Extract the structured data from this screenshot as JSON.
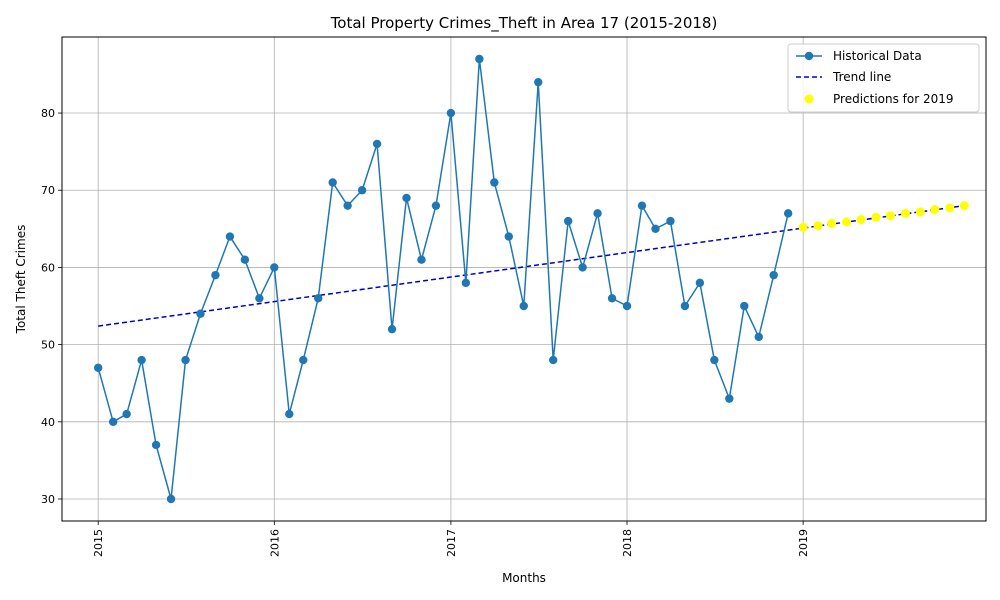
{
  "chart_data": {
    "type": "line",
    "title": "Total Property Crimes_Theft in Area 17 (2015-2018)",
    "xlabel": "Months",
    "ylabel": "Total Theft Crimes",
    "x_tick_labels": [
      "2015",
      "2016",
      "2017",
      "2018",
      "2019"
    ],
    "y_ticks": [
      30,
      40,
      50,
      60,
      70,
      80
    ],
    "xlim": [
      "2014-10-18",
      "2020-01-15"
    ],
    "ylim": [
      27.15,
      89.85
    ],
    "grid": true,
    "legend_position": "top-right",
    "series": [
      {
        "name": "Historical Data",
        "style": "line-marker",
        "color": "#1f77b4",
        "x": [
          "2015-01",
          "2015-02",
          "2015-03",
          "2015-04",
          "2015-05",
          "2015-06",
          "2015-07",
          "2015-08",
          "2015-09",
          "2015-10",
          "2015-11",
          "2015-12",
          "2016-01",
          "2016-02",
          "2016-03",
          "2016-04",
          "2016-05",
          "2016-06",
          "2016-07",
          "2016-08",
          "2016-09",
          "2016-10",
          "2016-11",
          "2016-12",
          "2017-01",
          "2017-02",
          "2017-03",
          "2017-04",
          "2017-05",
          "2017-06",
          "2017-07",
          "2017-08",
          "2017-09",
          "2017-10",
          "2017-11",
          "2017-12",
          "2018-01",
          "2018-02",
          "2018-03",
          "2018-04",
          "2018-05",
          "2018-06",
          "2018-07",
          "2018-08",
          "2018-09",
          "2018-10",
          "2018-11",
          "2018-12"
        ],
        "values": [
          47,
          40,
          41,
          48,
          37,
          30,
          48,
          54,
          59,
          64,
          61,
          56,
          60,
          41,
          48,
          56,
          71,
          68,
          70,
          76,
          52,
          69,
          61,
          68,
          80,
          58,
          87,
          71,
          64,
          55,
          84,
          48,
          66,
          60,
          67,
          56,
          55,
          68,
          65,
          66,
          55,
          58,
          48,
          43,
          55,
          51,
          59,
          67
        ]
      },
      {
        "name": "Trend line",
        "style": "dashed",
        "color": "#0000cd",
        "x": [
          "2015-01",
          "2019-12"
        ],
        "values": [
          52.4,
          68.0
        ]
      },
      {
        "name": "Predictions for 2019",
        "style": "scatter",
        "color": "#ffff00",
        "x": [
          "2019-01",
          "2019-02",
          "2019-03",
          "2019-04",
          "2019-05",
          "2019-06",
          "2019-07",
          "2019-08",
          "2019-09",
          "2019-10",
          "2019-11",
          "2019-12"
        ],
        "values": [
          65.2,
          65.4,
          65.7,
          65.9,
          66.2,
          66.5,
          66.7,
          67.0,
          67.2,
          67.5,
          67.7,
          68.0
        ]
      }
    ]
  }
}
